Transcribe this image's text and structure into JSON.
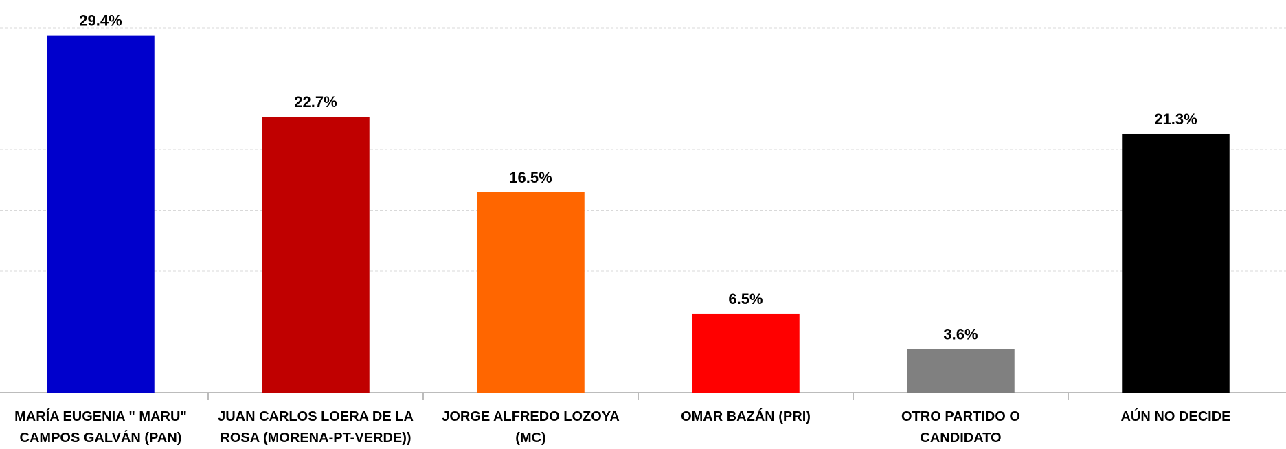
{
  "chart_data": {
    "type": "bar",
    "categories": [
      "MARÍA EUGENIA \" MARU\"\nCAMPOS  GALVÁN (PAN)",
      "JUAN CARLOS LOERA DE LA\nROSA (MORENA-PT-VERDE))",
      "JORGE ALFREDO LOZOYA\n(MC)",
      "OMAR BAZÁN (PRI)",
      "OTRO PARTIDO O\nCANDIDATO",
      "AÚN NO DECIDE"
    ],
    "values": [
      29.4,
      22.7,
      16.5,
      6.5,
      3.6,
      21.3
    ],
    "value_labels": [
      "29.4%",
      "22.7%",
      "16.5%",
      "6.5%",
      "3.6%",
      "21.3%"
    ],
    "colors": [
      "#0000cc",
      "#c00000",
      "#ff6600",
      "#ff0000",
      "#808080",
      "#000000"
    ],
    "ylim": [
      0,
      30
    ],
    "yticks": [
      0,
      5,
      10,
      15,
      20,
      25,
      30
    ],
    "grid": true
  }
}
